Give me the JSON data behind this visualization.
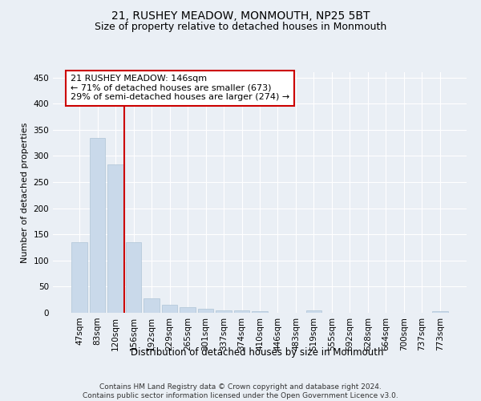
{
  "title": "21, RUSHEY MEADOW, MONMOUTH, NP25 5BT",
  "subtitle": "Size of property relative to detached houses in Monmouth",
  "xlabel": "Distribution of detached houses by size in Monmouth",
  "ylabel": "Number of detached properties",
  "categories": [
    "47sqm",
    "83sqm",
    "120sqm",
    "156sqm",
    "192sqm",
    "229sqm",
    "265sqm",
    "301sqm",
    "337sqm",
    "374sqm",
    "410sqm",
    "446sqm",
    "483sqm",
    "519sqm",
    "555sqm",
    "592sqm",
    "628sqm",
    "664sqm",
    "700sqm",
    "737sqm",
    "773sqm"
  ],
  "values": [
    135,
    335,
    283,
    135,
    27,
    15,
    11,
    7,
    5,
    4,
    3,
    0,
    0,
    4,
    0,
    0,
    0,
    0,
    0,
    0,
    3
  ],
  "bar_color": "#c9d9ea",
  "bar_edge_color": "#afc4d6",
  "annotation_text_line1": "21 RUSHEY MEADOW: 146sqm",
  "annotation_text_line2": "← 71% of detached houses are smaller (673)",
  "annotation_text_line3": "29% of semi-detached houses are larger (274) →",
  "annotation_box_color": "#ffffff",
  "annotation_box_edge": "#cc0000",
  "vline_color": "#cc0000",
  "vline_x_pos": 2.5,
  "ylim": [
    0,
    460
  ],
  "yticks": [
    0,
    50,
    100,
    150,
    200,
    250,
    300,
    350,
    400,
    450
  ],
  "bg_color": "#eaeff5",
  "plot_bg_color": "#eaeff5",
  "grid_color": "#ffffff",
  "footer_line1": "Contains HM Land Registry data © Crown copyright and database right 2024.",
  "footer_line2": "Contains public sector information licensed under the Open Government Licence v3.0.",
  "title_fontsize": 10,
  "subtitle_fontsize": 9,
  "xlabel_fontsize": 8.5,
  "ylabel_fontsize": 8,
  "annot_fontsize": 8,
  "tick_fontsize": 7.5,
  "footer_fontsize": 6.5
}
